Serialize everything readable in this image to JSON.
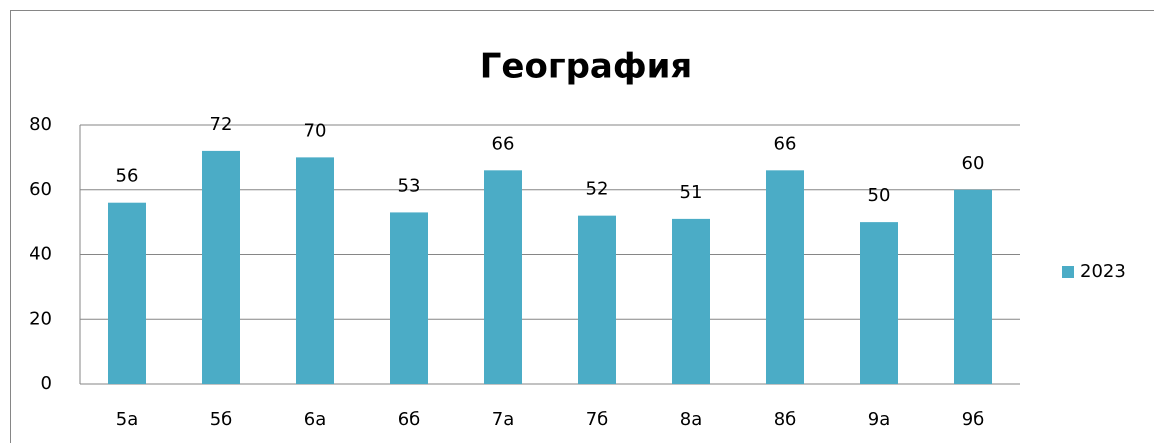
{
  "chart_data": {
    "type": "bar",
    "title": "География",
    "categories": [
      "5а",
      "5б",
      "6а",
      "6б",
      "7а",
      "7б",
      "8а",
      "8б",
      "9а",
      "9б"
    ],
    "series": [
      {
        "name": "2023",
        "color": "#4bacc6",
        "values": [
          56,
          72,
          70,
          53,
          66,
          52,
          51,
          66,
          50,
          60
        ]
      }
    ],
    "ylim": [
      0,
      80
    ],
    "yticks": [
      0,
      20,
      40,
      60,
      80
    ],
    "grid": true,
    "legend": "right"
  }
}
